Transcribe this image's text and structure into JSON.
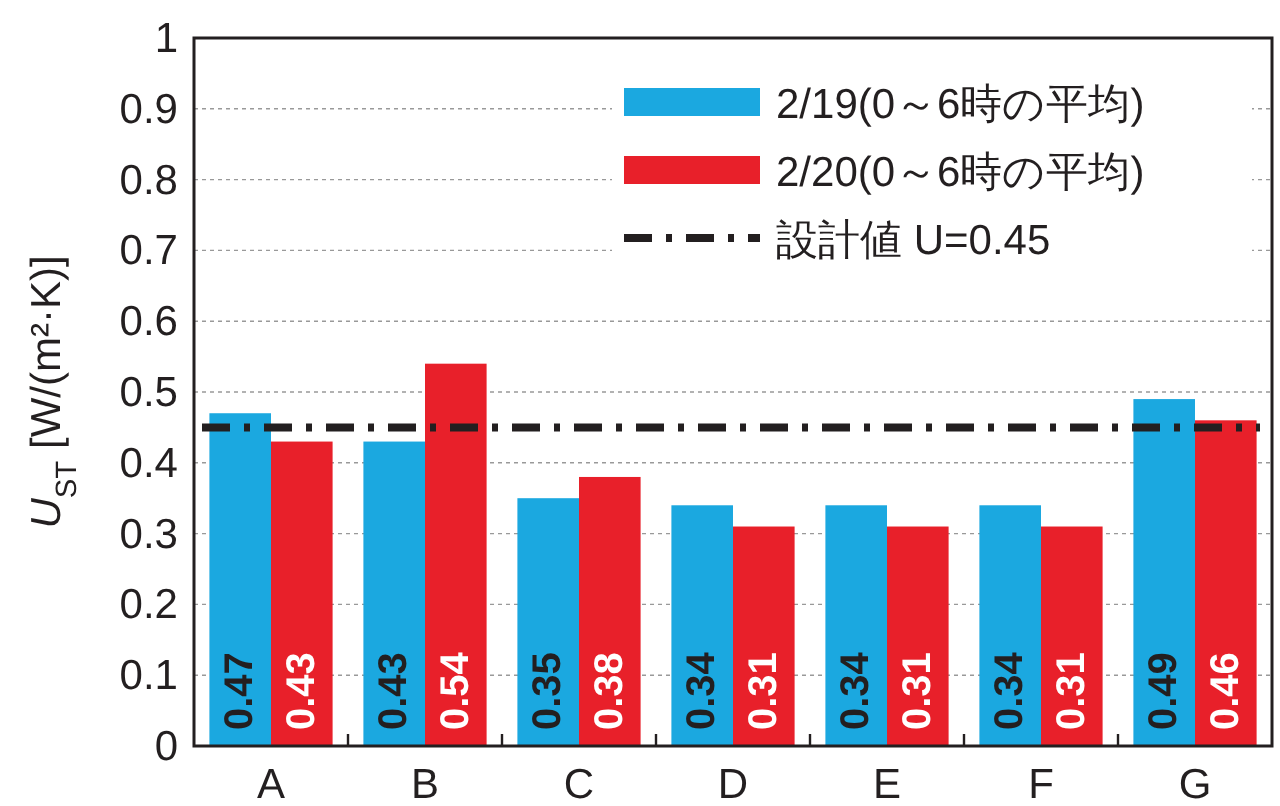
{
  "chart_data": {
    "type": "bar",
    "ylabel": "U$_{ST}$ [W/(m²·K)]",
    "categories": [
      "A",
      "B",
      "C",
      "D",
      "E",
      "F",
      "G"
    ],
    "series": [
      {
        "name": "2/19(0～6時の平均)",
        "color": "#1ba8e0",
        "values": [
          0.47,
          0.43,
          0.35,
          0.34,
          0.34,
          0.34,
          0.49
        ]
      },
      {
        "name": "2/20(0～6時の平均)",
        "color": "#e8202a",
        "values": [
          0.43,
          0.54,
          0.38,
          0.31,
          0.31,
          0.31,
          0.46
        ]
      }
    ],
    "ylim": [
      0,
      1
    ],
    "yticks": [
      0,
      0.1,
      0.2,
      0.3,
      0.4,
      0.5,
      0.6,
      0.7,
      0.8,
      0.9,
      1
    ],
    "ref_lines": [
      {
        "axis": "y",
        "value": 0.45,
        "label": "設計値 U=0.45",
        "color": "#231f20",
        "line_style": "dashdot"
      }
    ],
    "data_labels": true,
    "grid": "y",
    "legend": "top right"
  }
}
